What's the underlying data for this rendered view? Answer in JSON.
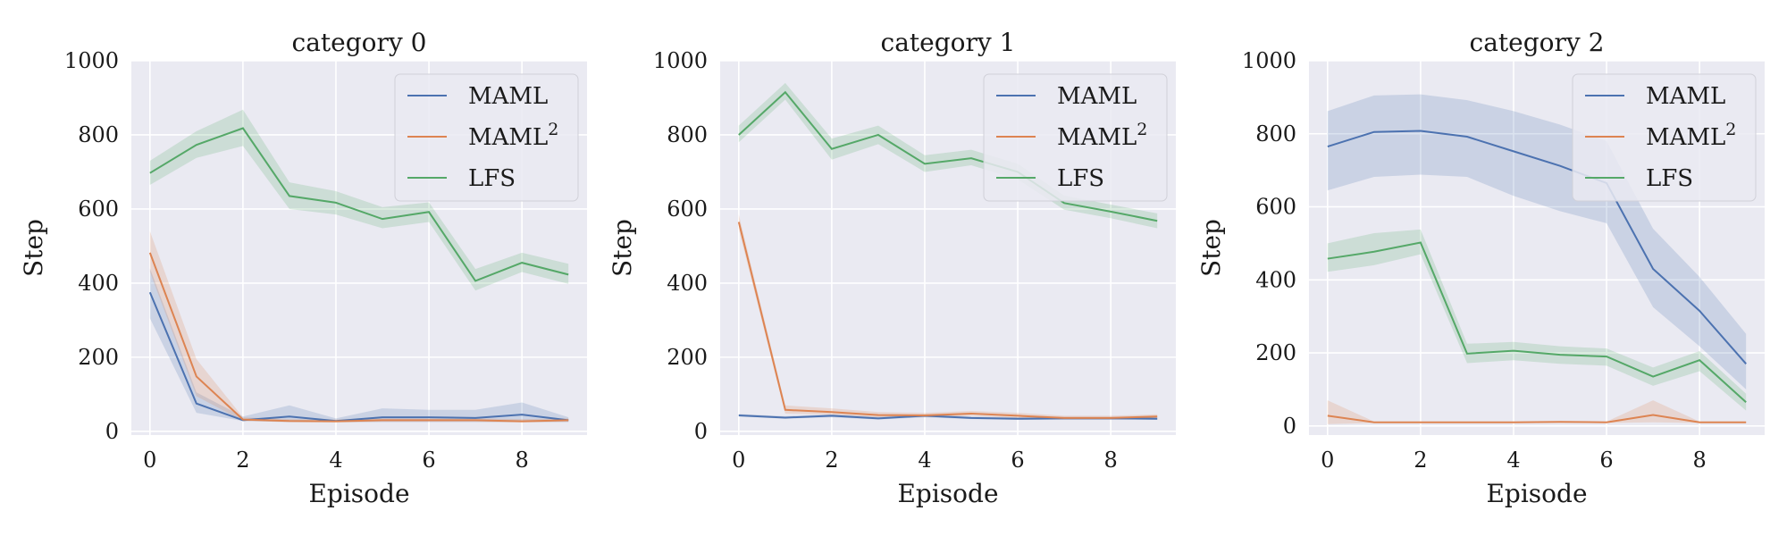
{
  "chart_data": [
    {
      "type": "line",
      "title": "category 0",
      "xlabel": "Episode",
      "ylabel": "Step",
      "xlim": [
        -0.4,
        9.4
      ],
      "ylim": [
        -10,
        1000
      ],
      "xticks": [
        0,
        2,
        4,
        6,
        8
      ],
      "yticks": [
        0,
        200,
        400,
        600,
        800,
        1000
      ],
      "x": [
        0,
        1,
        2,
        3,
        4,
        5,
        6,
        7,
        8,
        9
      ],
      "grid": true,
      "legend_position": "top-right",
      "series": [
        {
          "name": "MAML",
          "color": "#4c72b0",
          "values": [
            375,
            75,
            30,
            40,
            28,
            38,
            38,
            36,
            45,
            30
          ],
          "lower": [
            305,
            50,
            28,
            25,
            25,
            25,
            25,
            25,
            25,
            25
          ],
          "upper": [
            440,
            105,
            40,
            70,
            35,
            62,
            58,
            58,
            78,
            38
          ]
        },
        {
          "name": "MAML",
          "name_sup": "2",
          "color": "#dd8452",
          "values": [
            482,
            148,
            32,
            28,
            27,
            30,
            30,
            30,
            27,
            30
          ],
          "lower": [
            430,
            95,
            28,
            25,
            24,
            26,
            26,
            26,
            24,
            26
          ],
          "upper": [
            540,
            195,
            38,
            33,
            32,
            35,
            35,
            35,
            33,
            35
          ]
        },
        {
          "name": "LFS",
          "color": "#55a868",
          "values": [
            697,
            773,
            818,
            635,
            617,
            573,
            592,
            406,
            455,
            423
          ],
          "lower": [
            665,
            738,
            770,
            600,
            585,
            548,
            565,
            380,
            430,
            398
          ],
          "upper": [
            730,
            810,
            868,
            672,
            648,
            605,
            618,
            438,
            482,
            452
          ]
        }
      ]
    },
    {
      "type": "line",
      "title": "category 1",
      "xlabel": "Episode",
      "ylabel": "Step",
      "xlim": [
        -0.4,
        9.4
      ],
      "ylim": [
        -10,
        1000
      ],
      "xticks": [
        0,
        2,
        4,
        6,
        8
      ],
      "yticks": [
        0,
        200,
        400,
        600,
        800,
        1000
      ],
      "x": [
        0,
        1,
        2,
        3,
        4,
        5,
        6,
        7,
        8,
        9
      ],
      "grid": true,
      "legend_position": "top-right",
      "series": [
        {
          "name": "MAML",
          "color": "#4c72b0",
          "values": [
            43,
            37,
            42,
            35,
            42,
            36,
            34,
            35,
            35,
            34
          ],
          "lower": [
            40,
            34,
            38,
            32,
            38,
            33,
            31,
            32,
            32,
            31
          ],
          "upper": [
            47,
            41,
            46,
            39,
            46,
            40,
            38,
            39,
            39,
            38
          ]
        },
        {
          "name": "MAML",
          "name_sup": "2",
          "color": "#dd8452",
          "values": [
            565,
            58,
            52,
            44,
            43,
            48,
            42,
            36,
            36,
            40
          ],
          "lower": [
            545,
            48,
            45,
            38,
            38,
            42,
            36,
            32,
            32,
            35
          ],
          "upper": [
            585,
            70,
            62,
            52,
            50,
            55,
            50,
            42,
            42,
            46
          ]
        },
        {
          "name": "LFS",
          "color": "#55a868",
          "values": [
            800,
            915,
            762,
            800,
            722,
            737,
            700,
            616,
            593,
            568
          ],
          "lower": [
            780,
            895,
            733,
            775,
            700,
            718,
            680,
            598,
            575,
            548
          ],
          "upper": [
            825,
            940,
            790,
            825,
            745,
            760,
            722,
            636,
            612,
            588
          ]
        }
      ]
    },
    {
      "type": "line",
      "title": "category 2",
      "xlabel": "Episode",
      "ylabel": "Step",
      "xlim": [
        -0.4,
        9.4
      ],
      "ylim": [
        -25,
        1000
      ],
      "xticks": [
        0,
        2,
        4,
        6,
        8
      ],
      "yticks": [
        0,
        200,
        400,
        600,
        800,
        1000
      ],
      "x": [
        0,
        1,
        2,
        3,
        4,
        5,
        6,
        7,
        8,
        9
      ],
      "grid": true,
      "legend_position": "top-right",
      "series": [
        {
          "name": "MAML",
          "color": "#4c72b0",
          "values": [
            765,
            805,
            808,
            792,
            752,
            712,
            665,
            430,
            315,
            170
          ],
          "lower": [
            645,
            682,
            688,
            682,
            630,
            588,
            555,
            325,
            218,
            100
          ],
          "upper": [
            862,
            905,
            908,
            892,
            862,
            825,
            780,
            540,
            408,
            252
          ]
        },
        {
          "name": "MAML",
          "name_sup": "2",
          "color": "#dd8452",
          "values": [
            28,
            10,
            10,
            10,
            10,
            11,
            10,
            30,
            10,
            10
          ],
          "lower": [
            5,
            8,
            8,
            8,
            8,
            8,
            8,
            10,
            8,
            8
          ],
          "upper": [
            70,
            12,
            12,
            12,
            12,
            13,
            12,
            70,
            12,
            12
          ]
        },
        {
          "name": "LFS",
          "color": "#55a868",
          "values": [
            458,
            477,
            502,
            198,
            206,
            195,
            190,
            135,
            180,
            65
          ],
          "lower": [
            422,
            440,
            470,
            172,
            180,
            170,
            165,
            110,
            150,
            42
          ],
          "upper": [
            500,
            528,
            538,
            225,
            230,
            218,
            212,
            160,
            205,
            88
          ]
        }
      ]
    }
  ]
}
